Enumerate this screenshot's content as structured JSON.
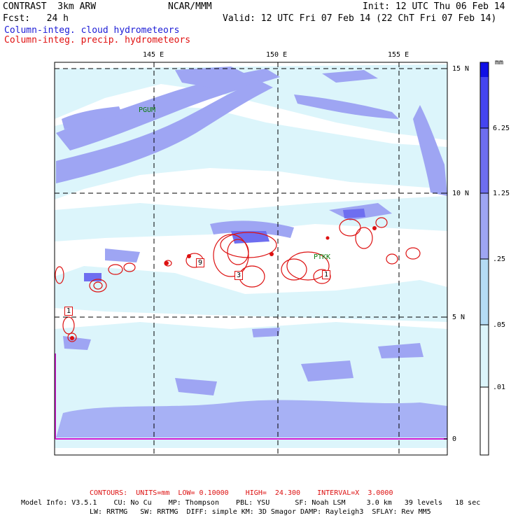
{
  "header": {
    "title": "CONTRAST  3km ARW",
    "org": "NCAR/MMM",
    "init": "Init: 12 UTC Thu 06 Feb 14",
    "fcst": "Fcst:   24 h",
    "valid": "Valid: 12 UTC Fri 07 Feb 14 (22 ChT Fri 07 Feb 14)",
    "field_cloud": "Column-integ. cloud hydrometeors",
    "field_precip": "Column-integ. precip. hydrometeors"
  },
  "map": {
    "lon_labels": [
      "145 E",
      "150 E",
      "155 E"
    ],
    "lat_labels": [
      "15 N",
      "10 N",
      "5 N",
      "0"
    ],
    "stations": [
      "PGUM",
      "PTKK"
    ],
    "contour_labels": [
      "9",
      "3",
      "1",
      "1"
    ]
  },
  "colorbar": {
    "units": "mm",
    "levels": [
      "6.25",
      "1.25",
      ".25",
      ".05",
      ".01"
    ],
    "colors": [
      "#ffffff",
      "#dcf5fb",
      "#b4dcf5",
      "#9ea5f3",
      "#6e6ef0",
      "#4545f0",
      "#1010e6"
    ]
  },
  "footer": {
    "contours": "CONTOURS:  UNITS=mm  LOW= 0.10000    HIGH=  24.300    INTERVAL=X  3.0000",
    "model_line1": "Model Info: V3.5.1    CU: No Cu    MP: Thompson    PBL: YSU      SF: Noah LSM     3.0 km   39 levels   18 sec",
    "model_line2": "LW: RRTMG   SW: RRTMG  DIFF: simple KM: 3D Smagor DAMP: Rayleigh3  SFLAY: Rev MM5"
  }
}
